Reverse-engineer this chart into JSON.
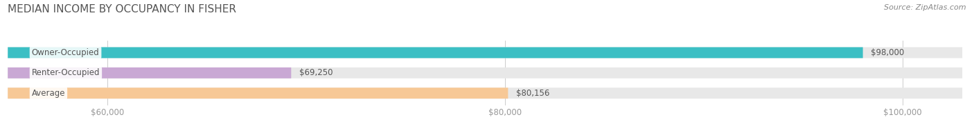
{
  "title": "MEDIAN INCOME BY OCCUPANCY IN FISHER",
  "source": "Source: ZipAtlas.com",
  "categories": [
    "Owner-Occupied",
    "Renter-Occupied",
    "Average"
  ],
  "values": [
    98000,
    69250,
    80156
  ],
  "bar_colors": [
    "#3bbfc4",
    "#c9a8d4",
    "#f7c896"
  ],
  "value_labels": [
    "$98,000",
    "$69,250",
    "$80,156"
  ],
  "xlim_min": 55000,
  "xlim_max": 103000,
  "xticks": [
    60000,
    80000,
    100000
  ],
  "xtick_labels": [
    "$60,000",
    "$80,000",
    "$100,000"
  ],
  "title_fontsize": 11,
  "label_fontsize": 8.5,
  "tick_fontsize": 8.5,
  "source_fontsize": 8,
  "bar_height": 0.54,
  "background_color": "#ffffff",
  "bar_bg_color": "#e8e8e8",
  "title_color": "#555555",
  "tick_color": "#999999",
  "value_label_color": "#555555",
  "category_label_color": "#555555",
  "source_color": "#888888"
}
